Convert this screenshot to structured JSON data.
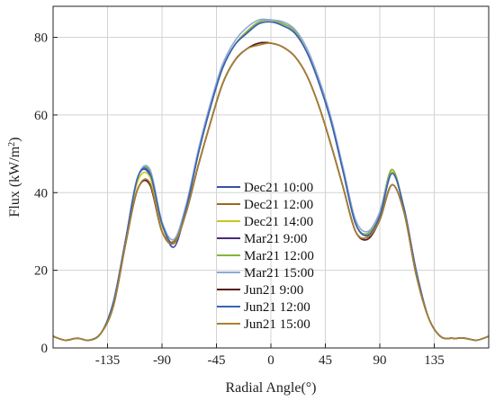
{
  "chart_data": {
    "type": "line",
    "xlabel": "Radial Angle(°)",
    "ylabel": "Flux (kW/m²)",
    "ylabel_parts": {
      "main": "Flux (kW/m",
      "sup": "2",
      "close": ")"
    },
    "xlim": [
      -180,
      180
    ],
    "ylim": [
      0,
      88
    ],
    "xticks": [
      -135,
      -90,
      -45,
      0,
      45,
      90,
      135
    ],
    "yticks": [
      0,
      20,
      40,
      60,
      80
    ],
    "xtick_labels": [
      "-135",
      "-90",
      "-45",
      "0",
      "45",
      "90",
      "135"
    ],
    "ytick_labels": [
      "0",
      "20",
      "40",
      "60",
      "80"
    ],
    "grid": true,
    "legend_position": "center",
    "x": [
      -180,
      -170,
      -160,
      -150,
      -140,
      -130,
      -120,
      -110,
      -100,
      -90,
      -80,
      -70,
      -60,
      -50,
      -40,
      -30,
      -20,
      -10,
      0,
      10,
      20,
      30,
      40,
      50,
      60,
      70,
      80,
      90,
      100,
      110,
      120,
      130,
      140,
      150,
      160,
      170,
      180
    ],
    "series": [
      {
        "name": "Dec21 10:00",
        "color": "#3b4fa6",
        "values": [
          3,
          2,
          2.5,
          2,
          4,
          12,
          28,
          44,
          44.5,
          32,
          26,
          36,
          50,
          62,
          72,
          78,
          81,
          83.5,
          84,
          83,
          81,
          76,
          68,
          58,
          45,
          32,
          29,
          34,
          45,
          36,
          20,
          8,
          3,
          2.5,
          2.5,
          2,
          3
        ]
      },
      {
        "name": "Dec21 12:00",
        "color": "#9a6a1c",
        "values": [
          3,
          2,
          2.5,
          2,
          4,
          11,
          27,
          41,
          42,
          30,
          27.5,
          35,
          47,
          58,
          68,
          74,
          77,
          78.5,
          78.5,
          77.5,
          75,
          70,
          62,
          52,
          41,
          30,
          28.5,
          33,
          42,
          35,
          19,
          8,
          3,
          2.5,
          2.5,
          2,
          3
        ]
      },
      {
        "name": "Dec21 14:00",
        "color": "#c8c81e",
        "values": [
          3,
          2,
          2.5,
          2,
          4,
          12,
          28,
          43,
          44,
          31.5,
          27,
          36,
          50,
          62,
          72,
          78,
          81.5,
          83.5,
          84,
          83.5,
          81.5,
          76,
          68,
          58,
          45,
          32,
          29.5,
          35,
          45.5,
          36,
          20,
          8,
          3,
          2.5,
          2.5,
          2,
          3
        ]
      },
      {
        "name": "Mar21 9:00",
        "color": "#4a2a7a",
        "values": [
          3,
          2,
          2.5,
          2,
          4,
          11,
          27,
          41,
          42,
          30,
          27,
          35,
          47,
          58,
          68,
          74,
          77,
          78.5,
          78.5,
          77.5,
          75,
          70,
          62,
          52,
          41,
          30,
          28.5,
          33,
          42,
          35,
          19,
          8,
          3,
          2.5,
          2.5,
          2,
          3
        ]
      },
      {
        "name": "Mar21 12:00",
        "color": "#86b43a",
        "values": [
          3,
          2,
          2.5,
          2,
          4,
          12,
          28,
          44,
          45.5,
          32,
          27,
          36,
          50,
          62,
          72,
          78,
          81.5,
          84,
          84.5,
          83.5,
          81.5,
          76,
          68,
          58,
          45,
          32,
          29.5,
          35,
          46,
          36,
          20,
          8,
          3,
          2.5,
          2.5,
          2,
          3
        ]
      },
      {
        "name": "Mar21 15:00",
        "color": "#8fa8d8",
        "values": [
          3,
          2,
          2.5,
          2,
          4,
          12,
          28,
          44,
          46,
          32.5,
          28,
          37,
          51,
          63,
          73,
          79,
          82.5,
          84.5,
          84.5,
          84,
          82,
          77,
          69,
          59,
          46,
          33,
          30,
          35,
          45,
          36,
          20,
          8,
          3,
          2.5,
          2.5,
          2,
          3
        ]
      },
      {
        "name": "Jun21 9:00",
        "color": "#5a1a1a",
        "values": [
          3,
          2,
          2.5,
          2,
          4,
          11,
          27,
          41,
          42,
          30,
          27,
          35,
          47,
          58,
          68,
          74,
          77,
          78.5,
          78.5,
          77.5,
          75,
          70,
          62,
          52,
          41,
          30,
          28,
          33,
          42,
          35,
          19,
          8,
          3,
          2.5,
          2.5,
          2,
          3
        ]
      },
      {
        "name": "Jun21 12:00",
        "color": "#3a62b4",
        "values": [
          3,
          2,
          2.5,
          2,
          4,
          12,
          28,
          44,
          45,
          32,
          27,
          36,
          50,
          62,
          72,
          78,
          81,
          83.5,
          84,
          83,
          81,
          76,
          68,
          58,
          45,
          32,
          29,
          34,
          45,
          36,
          20,
          8,
          3,
          2.5,
          2.5,
          2,
          3
        ]
      },
      {
        "name": "Jun21 15:00",
        "color": "#a8822e",
        "values": [
          3,
          2,
          2.5,
          2,
          4,
          11,
          27,
          41,
          42.5,
          30,
          27,
          35,
          47,
          58,
          68,
          74,
          77,
          78,
          78.5,
          77.5,
          75,
          70,
          62,
          52,
          41,
          30,
          28.5,
          33,
          42,
          35,
          19,
          8,
          3,
          2.5,
          2.5,
          2,
          3
        ]
      }
    ]
  }
}
